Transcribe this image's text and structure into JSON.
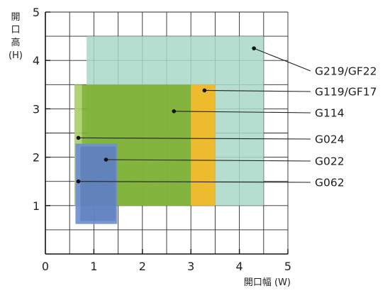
{
  "chart_data": {
    "type": "area",
    "title": "",
    "xlabel": "開口幅 (W)",
    "ylabel_lines": [
      "開",
      "口",
      "高",
      "(H)"
    ],
    "xlim": [
      0,
      5
    ],
    "ylim": [
      0,
      5
    ],
    "xticks": [
      "0",
      "1",
      "2",
      "3",
      "4",
      "5"
    ],
    "yticks": [
      "1",
      "2",
      "3",
      "4",
      "5"
    ],
    "grid": true,
    "minor_grid_step": 0.5,
    "series": [
      {
        "name": "G219/GF22",
        "x_range": [
          0.85,
          4.5
        ],
        "y_range": [
          1.0,
          4.5
        ],
        "color": "#a8d8c8",
        "marker": [
          4.3,
          4.25
        ]
      },
      {
        "name": "G119/GF17",
        "x_range": [
          3.0,
          3.5
        ],
        "y_range": [
          1.0,
          3.5
        ],
        "color": "#f2b71e",
        "marker": [
          3.28,
          3.38
        ]
      },
      {
        "name": "G114",
        "x_range": [
          0.75,
          3.0
        ],
        "y_range": [
          1.0,
          3.5
        ],
        "color": "#7fb031",
        "marker": [
          2.65,
          2.95
        ]
      },
      {
        "name": "G024",
        "x_range": [
          0.6,
          0.75
        ],
        "y_range": [
          1.0,
          3.5
        ],
        "color": "#a8d068",
        "marker": [
          0.68,
          2.4
        ]
      },
      {
        "name": "G022",
        "x_range": [
          0.62,
          1.48
        ],
        "y_range": [
          0.62,
          2.28
        ],
        "color": "#6f8fd2",
        "marker": [
          1.25,
          1.95
        ]
      },
      {
        "name": "G062",
        "x_range": [
          0.62,
          1.48
        ],
        "y_range": [
          0.62,
          2.28
        ],
        "color": "#6f8fd2",
        "marker": [
          0.68,
          1.5
        ]
      }
    ]
  }
}
